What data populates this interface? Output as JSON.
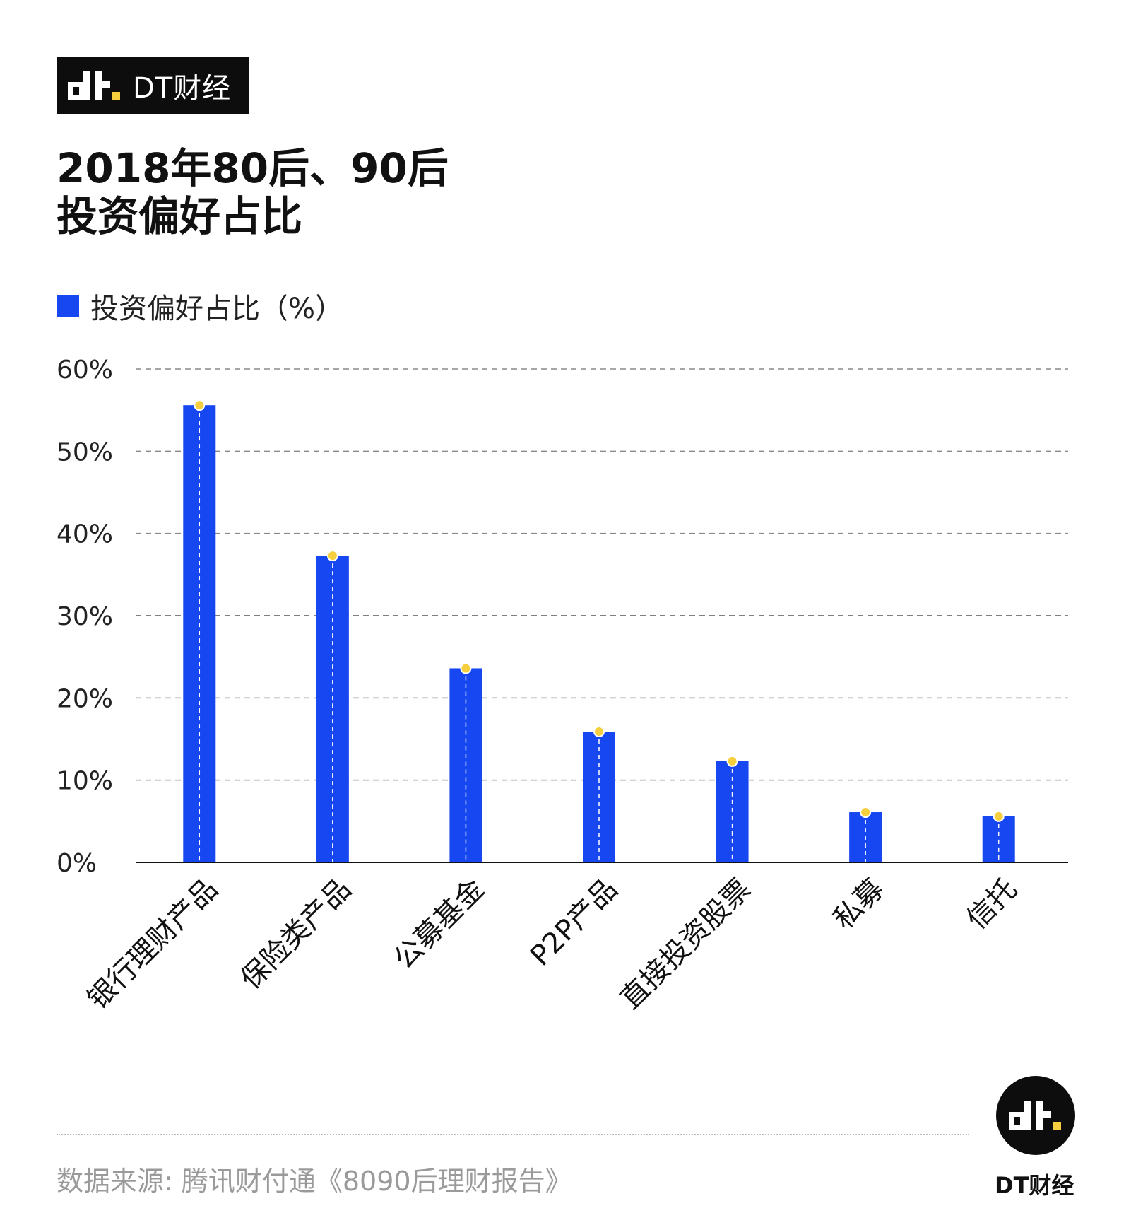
{
  "brand": {
    "name": "DT财经"
  },
  "title_lines": [
    "2018年80后、90后",
    "投资偏好占比"
  ],
  "legend": {
    "label": "投资偏好占比（%）",
    "color": "#1747f0"
  },
  "source": "数据来源: 腾讯财付通《8090后理财报告》",
  "badge": {
    "name": "DT财经"
  },
  "chart_data": {
    "type": "bar",
    "categories": [
      "银行理财产品",
      "保险类产品",
      "公募基金",
      "P2P产品",
      "直接投资股票",
      "私募",
      "信托"
    ],
    "series": [
      {
        "name": "投资偏好占比（%）",
        "values": [
          55.6,
          37.3,
          23.6,
          15.9,
          12.3,
          6.1,
          5.6
        ],
        "color": "#1747f0"
      }
    ],
    "y_ticks": [
      "0%",
      "10%",
      "20%",
      "30%",
      "40%",
      "50%",
      "60%"
    ],
    "ylim": [
      0,
      60
    ],
    "grid": true,
    "marker_color": "#f6cf3e"
  }
}
